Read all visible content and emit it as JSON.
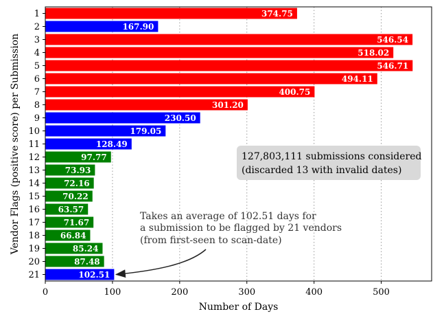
{
  "chart_data": {
    "type": "bar",
    "orientation": "horizontal",
    "xlabel": "Number of Days",
    "ylabel": "Vendor Flags (positive score) per Submission",
    "xlim": [
      0,
      575
    ],
    "xticks": [
      "0",
      "100",
      "200",
      "300",
      "400",
      "500"
    ],
    "grid": "vertical dotted",
    "categories": [
      "1",
      "2",
      "3",
      "4",
      "5",
      "6",
      "7",
      "8",
      "9",
      "10",
      "11",
      "12",
      "13",
      "14",
      "15",
      "16",
      "17",
      "18",
      "19",
      "20",
      "21"
    ],
    "values": [
      374.75,
      167.9,
      546.54,
      518.02,
      546.71,
      494.11,
      400.75,
      301.2,
      230.5,
      179.05,
      128.49,
      97.77,
      73.93,
      72.16,
      70.22,
      63.57,
      71.67,
      66.84,
      85.24,
      87.48,
      102.51
    ],
    "labels": [
      "374.75",
      "167.90",
      "546.54",
      "518.02",
      "546.71",
      "494.11",
      "400.75",
      "301.20",
      "230.50",
      "179.05",
      "128.49",
      "97.77",
      "73.93",
      "72.16",
      "70.22",
      "63.57",
      "71.67",
      "66.84",
      "85.24",
      "87.48",
      "102.51"
    ],
    "bar_colors": [
      "#ff0000",
      "#0000ff",
      "#ff0000",
      "#ff0000",
      "#ff0000",
      "#ff0000",
      "#ff0000",
      "#ff0000",
      "#0000ff",
      "#0000ff",
      "#0000ff",
      "#008000",
      "#008000",
      "#008000",
      "#008000",
      "#008000",
      "#008000",
      "#008000",
      "#008000",
      "#008000",
      "#0000ff"
    ],
    "annotation": {
      "lines": [
        "Takes an average of 102.51 days for",
        "a submission to be flagged by 21 vendors",
        "(from first-seen to scan-date)"
      ],
      "points_to_category": "21"
    },
    "info_box": {
      "lines": [
        "127,803,111 submissions considered",
        "(discarded 13 with invalid dates)"
      ]
    }
  }
}
